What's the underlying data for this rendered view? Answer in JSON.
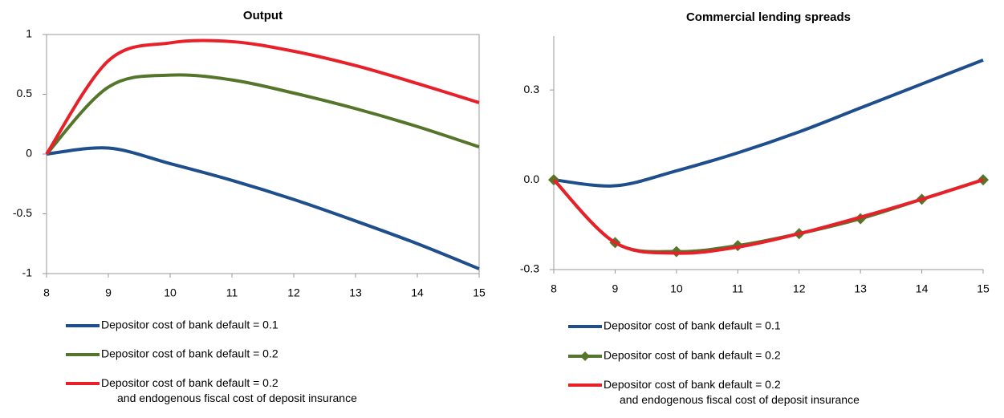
{
  "chart_data": [
    {
      "type": "line",
      "title": "Output",
      "x": [
        8,
        9,
        10,
        11,
        12,
        13,
        14,
        15
      ],
      "xlim": [
        8,
        15
      ],
      "xticks": [
        8,
        9,
        10,
        11,
        12,
        13,
        14,
        15
      ],
      "ylim": [
        -1,
        1
      ],
      "yticks": [
        -1,
        -0.5,
        0,
        0.5,
        1
      ],
      "frame": true,
      "series": [
        {
          "name": "Depositor cost of bank default = 0.1",
          "color": "#1f4e8c",
          "values": [
            0,
            0.05,
            -0.08,
            -0.22,
            -0.38,
            -0.56,
            -0.75,
            -0.96
          ]
        },
        {
          "name": "Depositor cost of bank default = 0.2",
          "color": "#55752a",
          "values": [
            0,
            0.56,
            0.66,
            0.62,
            0.51,
            0.38,
            0.23,
            0.06
          ]
        },
        {
          "name": "Depositor cost of bank default = 0.2\nand endogenous fiscal cost of deposit insurance",
          "color": "#e8202a",
          "values": [
            0,
            0.78,
            0.93,
            0.94,
            0.86,
            0.74,
            0.59,
            0.43
          ]
        }
      ]
    },
    {
      "type": "line",
      "title": "Commercial lending spreads",
      "x": [
        8,
        9,
        10,
        11,
        12,
        13,
        14,
        15
      ],
      "xlim": [
        8,
        15
      ],
      "xticks": [
        8,
        9,
        10,
        11,
        12,
        13,
        14,
        15
      ],
      "ylim": [
        -0.3,
        0.48
      ],
      "yticks": [
        -0.3,
        {
          "value": 0,
          "label": "0.0"
        },
        0.3
      ],
      "frame": false,
      "series": [
        {
          "name": "Depositor cost of bank default = 0.1",
          "color": "#1f4e8c",
          "values": [
            0,
            -0.02,
            0.03,
            0.09,
            0.16,
            0.24,
            0.32,
            0.4
          ]
        },
        {
          "name": "Depositor cost of bank default = 0.2",
          "color": "#55752a",
          "marker": "diamond",
          "values": [
            0,
            -0.21,
            -0.24,
            -0.22,
            -0.18,
            -0.13,
            -0.065,
            0
          ]
        },
        {
          "name": "Depositor cost of bank default = 0.2\nand endogenous fiscal cost of deposit insurance",
          "color": "#e8202a",
          "values": [
            0,
            -0.21,
            -0.245,
            -0.225,
            -0.18,
            -0.125,
            -0.065,
            0
          ]
        }
      ]
    }
  ]
}
